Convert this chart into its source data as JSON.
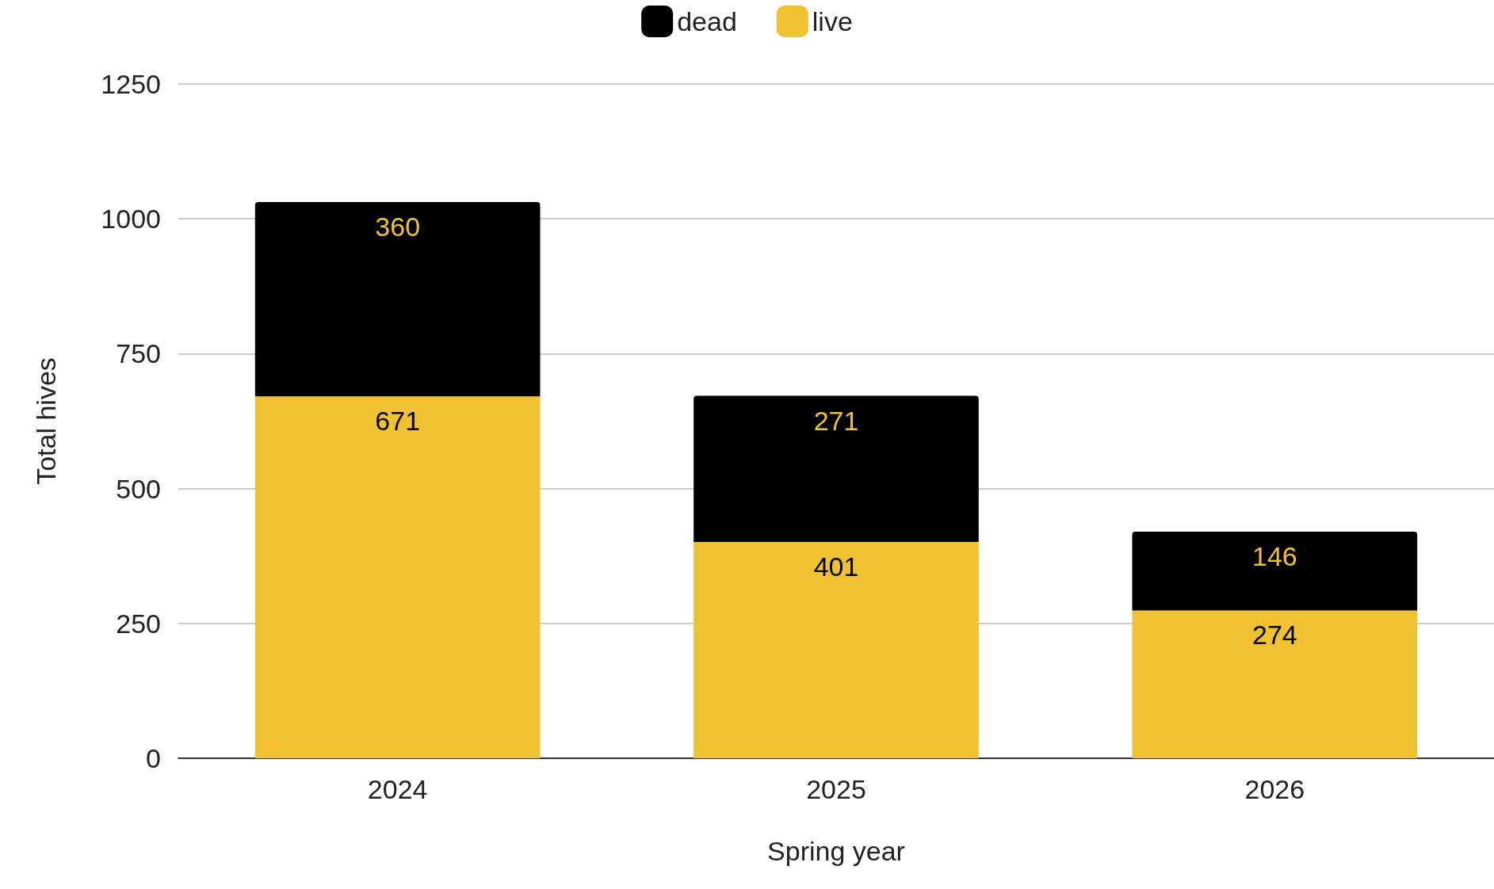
{
  "chart_data": {
    "type": "bar",
    "xlabel": "Spring year",
    "ylabel": "Total hives",
    "categories": [
      "2024",
      "2025",
      "2026"
    ],
    "stacked": true,
    "series": [
      {
        "name": "live",
        "color": "#f0c232",
        "values": [
          671,
          401,
          274
        ]
      },
      {
        "name": "dead",
        "color": "#000000",
        "values": [
          360,
          271,
          146
        ]
      }
    ],
    "ylim": [
      0,
      1250
    ],
    "yticks": [
      0,
      250,
      500,
      750,
      1000,
      1250
    ],
    "grid": "y",
    "legend": "top",
    "data_labels": true
  }
}
